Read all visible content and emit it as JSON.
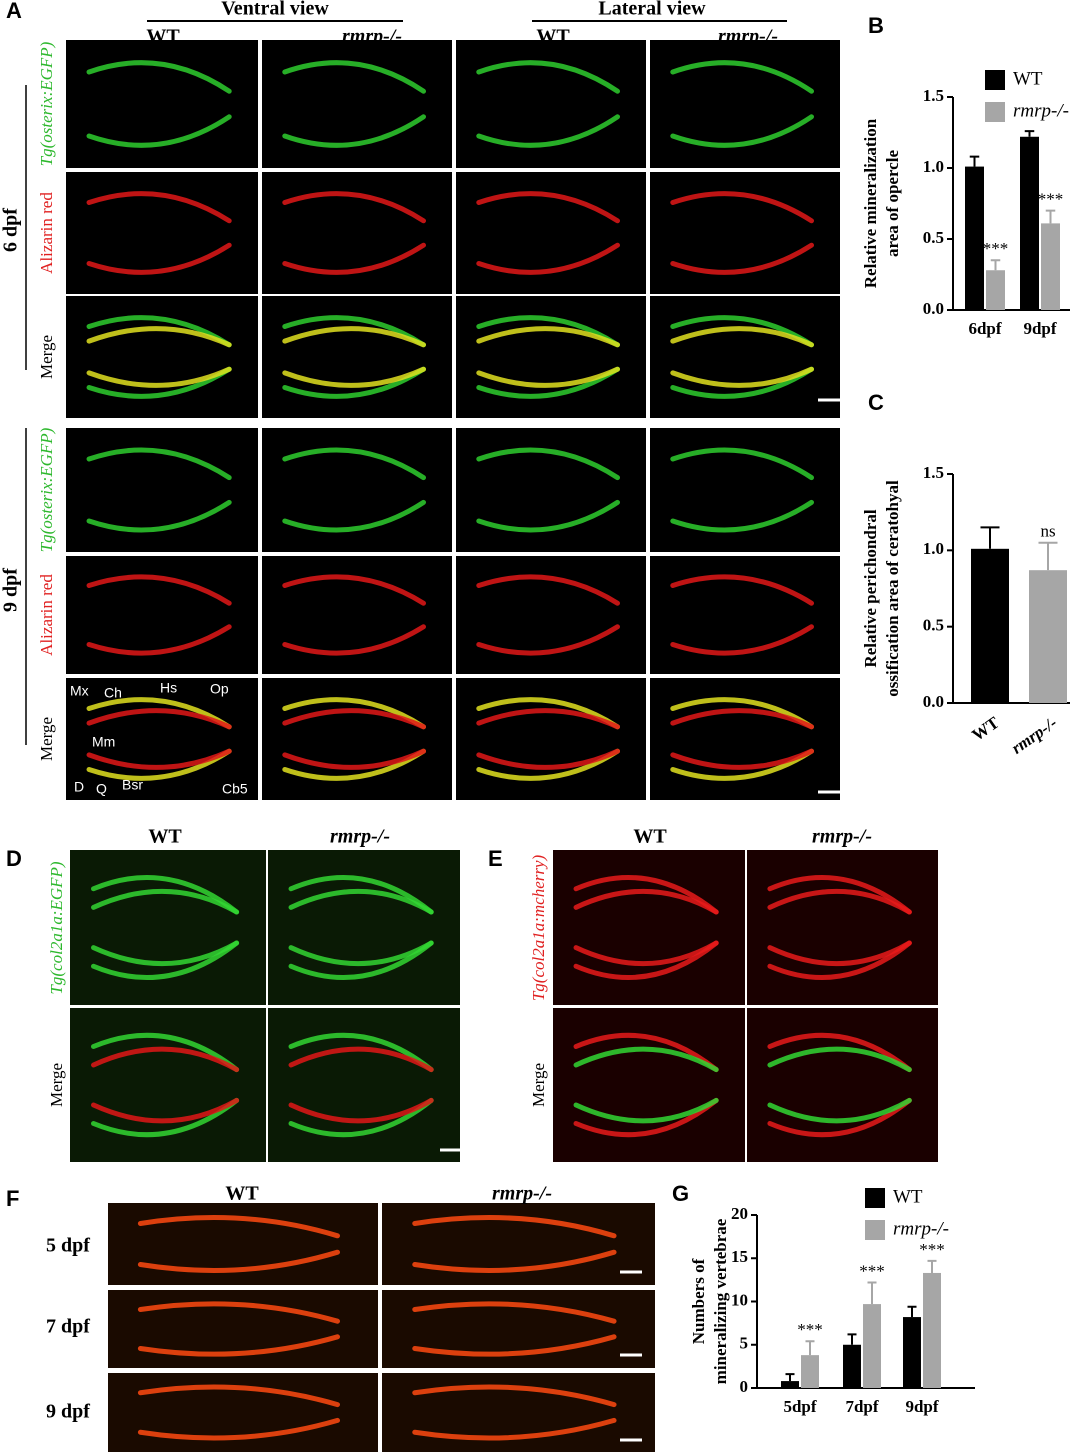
{
  "panel_a": {
    "label": "A",
    "ventral_view": "Ventral view",
    "lateral_view": "Lateral view",
    "columns": [
      "WT",
      "rmrp-/-",
      "WT",
      "rmrp-/-"
    ],
    "stages": [
      "6 dpf",
      "9 dpf"
    ],
    "rows": [
      "Tg(osterix:EGFP)",
      "Alizarin red",
      "Merge"
    ],
    "annotations": [
      "Mx",
      "Ch",
      "Hs",
      "Op",
      "Mm",
      "D",
      "Q",
      "Bsr",
      "Cb5"
    ]
  },
  "panel_d": {
    "label": "D",
    "columns": [
      "WT",
      "rmrp-/-"
    ],
    "rows": [
      "Tg(col2a1a:EGFP)",
      "Merge"
    ]
  },
  "panel_e": {
    "label": "E",
    "columns": [
      "WT",
      "rmrp-/-"
    ],
    "rows": [
      "Tg(col2a1a:mcherry)",
      "Merge"
    ]
  },
  "panel_f": {
    "label": "F",
    "columns": [
      "WT",
      "rmrp-/-"
    ],
    "rows": [
      "5 dpf",
      "7 dpf",
      "9 dpf"
    ]
  },
  "chart_data": [
    {
      "type": "bar",
      "panel": "B",
      "ylabel": [
        "Relative mineralization",
        "area of opercle"
      ],
      "categories": [
        "6dpf",
        "9dpf"
      ],
      "ylim": [
        0,
        1.5
      ],
      "yticks": [
        {
          "value": 0,
          "label": "0.0"
        },
        0.5,
        {
          "value": 1,
          "label": "1.0"
        },
        1.5
      ],
      "legend": "top-right",
      "series": [
        {
          "name": "WT",
          "color": "#000000",
          "values": [
            1.01,
            1.22
          ],
          "errors": [
            0.07,
            0.04
          ],
          "significance": [
            null,
            null
          ]
        },
        {
          "name": "rmrp-/-",
          "color": "#a6a6a6",
          "values": [
            0.28,
            0.61
          ],
          "errors": [
            0.07,
            0.09
          ],
          "significance": [
            "***",
            "***"
          ]
        }
      ]
    },
    {
      "type": "bar",
      "panel": "C",
      "ylabel": [
        "Relative perichondral",
        "ossification area of ceratohyal"
      ],
      "categories": [
        "WT",
        "rmrp-/-"
      ],
      "ylim": [
        0,
        1.5
      ],
      "yticks": [
        {
          "value": 0,
          "label": "0.0"
        },
        0.5,
        {
          "value": 1,
          "label": "1.0"
        },
        1.5
      ],
      "values": [
        1.01,
        0.87
      ],
      "errors": [
        0.14,
        0.18
      ],
      "colors": [
        "#000000",
        "#a6a6a6"
      ],
      "significance": [
        null,
        "ns"
      ]
    },
    {
      "type": "bar",
      "panel": "G",
      "ylabel": [
        "Numbers of",
        "mineralizing vertebrae"
      ],
      "categories": [
        "5dpf",
        "7dpf",
        "9dpf"
      ],
      "ylim": [
        0,
        20
      ],
      "yticks": [
        0,
        5,
        10,
        15,
        20
      ],
      "legend": "top-right",
      "series": [
        {
          "name": "WT",
          "color": "#000000",
          "values": [
            0.8,
            5.0,
            8.2
          ],
          "errors": [
            0.8,
            1.2,
            1.2
          ],
          "significance": [
            null,
            null,
            null
          ]
        },
        {
          "name": "rmrp-/-",
          "color": "#a6a6a6",
          "values": [
            3.8,
            9.7,
            13.3
          ],
          "errors": [
            1.6,
            2.5,
            1.4
          ],
          "significance": [
            "***",
            "***",
            "***"
          ]
        }
      ]
    }
  ]
}
